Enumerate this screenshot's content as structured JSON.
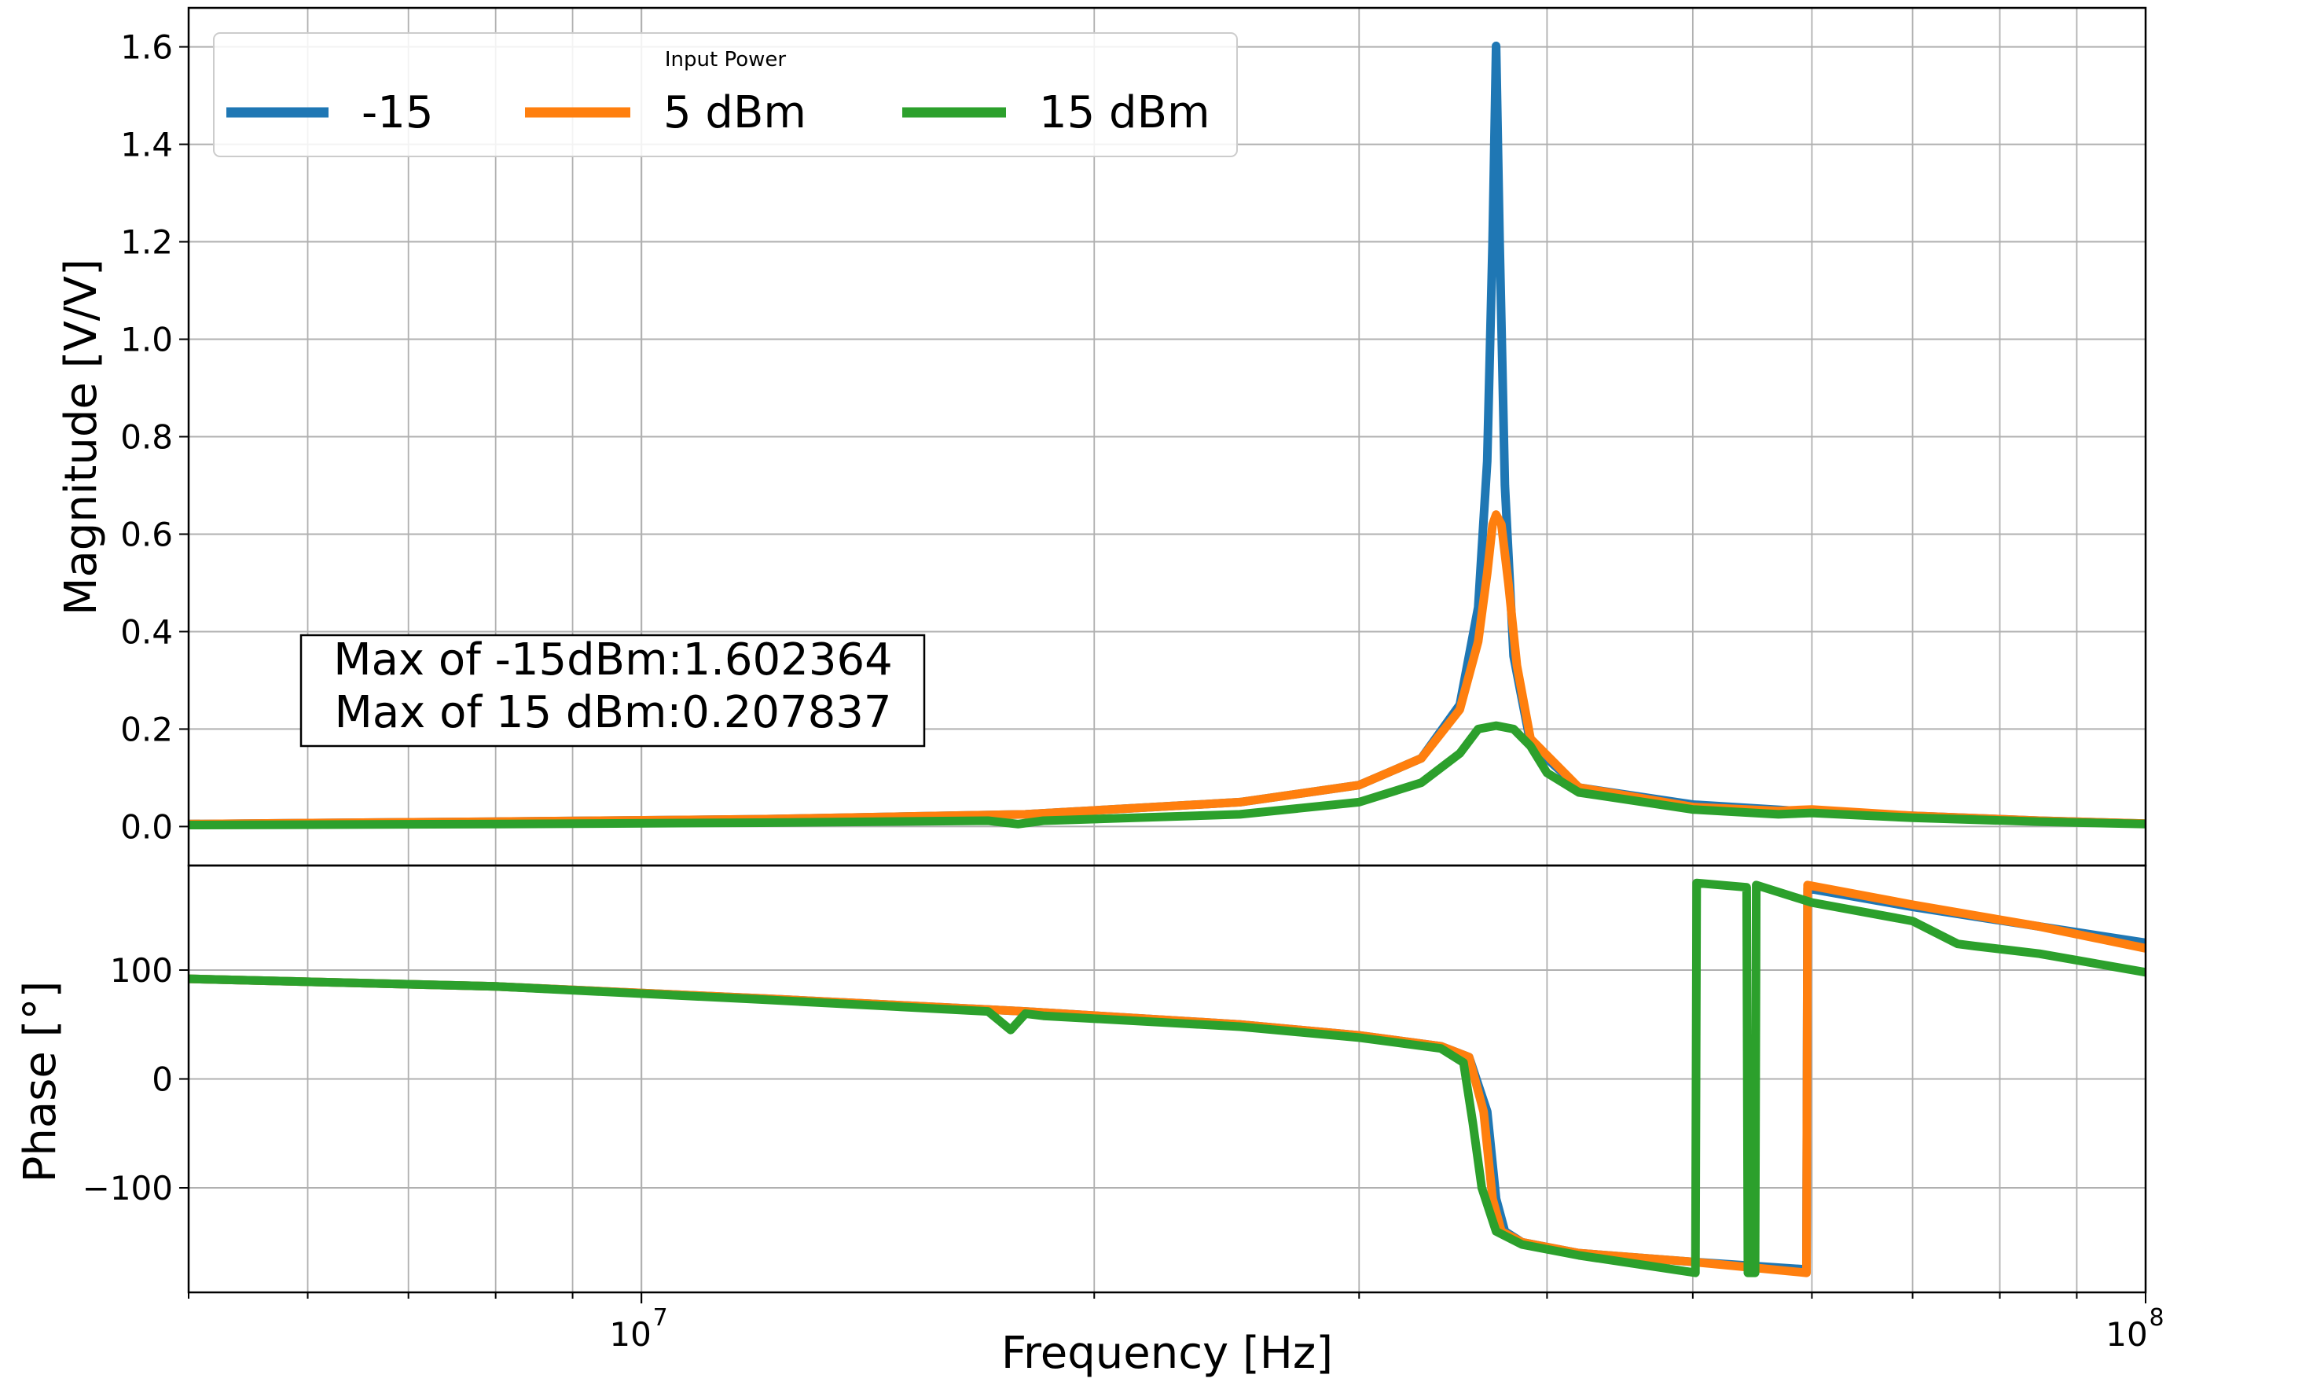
{
  "chart_data": [
    {
      "type": "line",
      "panel": "magnitude",
      "title": "",
      "xlabel": "",
      "ylabel": "Magnitude [V/V]",
      "xscale": "log",
      "xlim": [
        5000000,
        100000000
      ],
      "ylim": [
        -0.08,
        1.68
      ],
      "yticks": [
        0.0,
        0.2,
        0.4,
        0.6,
        0.8,
        1.0,
        1.2,
        1.4,
        1.6
      ],
      "ytick_labels": [
        "0.0",
        "0.2",
        "0.4",
        "0.6",
        "0.8",
        "1.0",
        "1.2",
        "1.4",
        "1.6"
      ],
      "grid": true,
      "legend": {
        "title": "Input Power",
        "placement": "top-left",
        "entries": [
          "-15",
          "5 dBm",
          "15 dBm"
        ]
      },
      "annotation": {
        "lines": [
          "Max of -15dBm:1.602364",
          "Max of 15 dBm:0.207837"
        ],
        "placement": "lower-left"
      },
      "series": [
        {
          "name": "-15",
          "color": "#1f77b4",
          "x": [
            5000000,
            8000000,
            12000000,
            18000000,
            25000000,
            30000000,
            33000000,
            35000000,
            36000000,
            36500000,
            36800000,
            37000000,
            37200000,
            37500000,
            38000000,
            39000000,
            42000000,
            50000000,
            60000000,
            70000000,
            85000000,
            100000000
          ],
          "y": [
            0.005,
            0.01,
            0.015,
            0.025,
            0.05,
            0.085,
            0.14,
            0.25,
            0.45,
            0.75,
            1.2,
            1.602,
            1.2,
            0.7,
            0.35,
            0.17,
            0.08,
            0.045,
            0.03,
            0.022,
            0.012,
            0.006
          ]
        },
        {
          "name": "5 dBm",
          "color": "#ff7f0e",
          "x": [
            5000000,
            8000000,
            12000000,
            18000000,
            25000000,
            30000000,
            33000000,
            35000000,
            36000000,
            36500000,
            36800000,
            37000000,
            37300000,
            37700000,
            38200000,
            39000000,
            42000000,
            50000000,
            57000000,
            60000000,
            70000000,
            85000000,
            100000000
          ],
          "y": [
            0.005,
            0.01,
            0.015,
            0.025,
            0.05,
            0.085,
            0.14,
            0.24,
            0.38,
            0.52,
            0.62,
            0.64,
            0.62,
            0.5,
            0.33,
            0.18,
            0.08,
            0.04,
            0.032,
            0.035,
            0.022,
            0.012,
            0.006
          ]
        },
        {
          "name": "15 dBm",
          "color": "#2ca02c",
          "x": [
            5000000,
            8000000,
            12000000,
            17000000,
            17800000,
            18500000,
            25000000,
            30000000,
            33000000,
            35000000,
            36000000,
            37000000,
            38000000,
            39000000,
            40000000,
            42000000,
            50000000,
            57000000,
            60000000,
            70000000,
            85000000,
            100000000
          ],
          "y": [
            0.003,
            0.005,
            0.008,
            0.012,
            0.005,
            0.012,
            0.025,
            0.05,
            0.09,
            0.15,
            0.2,
            0.207,
            0.2,
            0.165,
            0.11,
            0.07,
            0.035,
            0.025,
            0.028,
            0.018,
            0.01,
            0.005
          ]
        }
      ]
    },
    {
      "type": "line",
      "panel": "phase",
      "xlabel": "Frequency [Hz]",
      "ylabel": "Phase [°]",
      "xscale": "log",
      "xlim": [
        5000000,
        100000000
      ],
      "xticks": [
        10000000,
        100000000
      ],
      "xtick_labels": [
        {
          "base": "10",
          "exp": "7"
        },
        {
          "base": "10",
          "exp": "8"
        }
      ],
      "ylim": [
        -196,
        196
      ],
      "yticks": [
        100,
        0,
        -100
      ],
      "ytick_labels": [
        "100",
        "0",
        "−100"
      ],
      "grid": true,
      "series": [
        {
          "name": "-15",
          "color": "#1f77b4",
          "x": [
            5000000,
            8000000,
            12000000,
            18000000,
            25000000,
            30000000,
            34000000,
            35500000,
            36500000,
            37000000,
            37500000,
            38500000,
            42000000,
            50000000,
            59500000,
            59600000,
            70000000,
            85000000,
            100000000
          ],
          "y": [
            92,
            85,
            74,
            62,
            50,
            40,
            30,
            20,
            -30,
            -110,
            -140,
            -150,
            -160,
            -168,
            -175,
            175,
            158,
            140,
            125
          ]
        },
        {
          "name": "5 dBm",
          "color": "#ff7f0e",
          "x": [
            5000000,
            8000000,
            12000000,
            18000000,
            25000000,
            30000000,
            34000000,
            35500000,
            36300000,
            36800000,
            37300000,
            38500000,
            42000000,
            50000000,
            59500000,
            59600000,
            70000000,
            85000000,
            100000000
          ],
          "y": [
            92,
            85,
            74,
            62,
            50,
            40,
            30,
            20,
            -30,
            -110,
            -140,
            -150,
            -160,
            -168,
            -178,
            178,
            160,
            140,
            120
          ]
        },
        {
          "name": "15 dBm",
          "color": "#2ca02c",
          "x": [
            5000000,
            8000000,
            12000000,
            17000000,
            17600000,
            18000000,
            18500000,
            25000000,
            30000000,
            34000000,
            35200000,
            35700000,
            36200000,
            37000000,
            38500000,
            42000000,
            50200000,
            50300000,
            54300000,
            54400000,
            55000000,
            55100000,
            60000000,
            70000000,
            75000000,
            77000000,
            85000000,
            100000000
          ],
          "y": [
            92,
            85,
            73,
            62,
            45,
            60,
            58,
            48,
            38,
            28,
            15,
            -40,
            -100,
            -140,
            -152,
            -162,
            -178,
            180,
            176,
            -178,
            -178,
            178,
            162,
            145,
            124,
            122,
            115,
            98
          ]
        }
      ]
    }
  ]
}
